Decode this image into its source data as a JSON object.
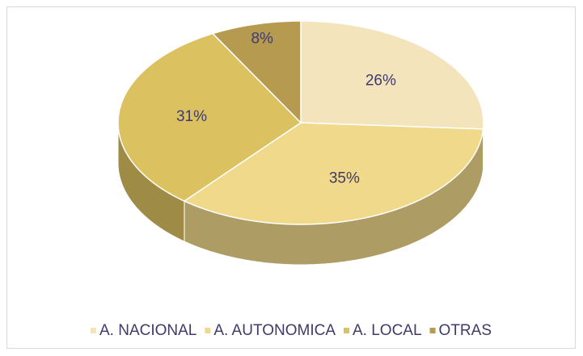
{
  "chart_data": {
    "type": "pie",
    "categories": [
      "A. NACIONAL",
      "A. AUTONOMICA",
      "A. LOCAL",
      "OTRAS"
    ],
    "values": [
      26,
      35,
      31,
      8
    ],
    "value_labels": [
      "26%",
      "35%",
      "31%",
      "8%"
    ],
    "colors": [
      "#f3e4bb",
      "#f0d98a",
      "#dcc160",
      "#b59a50"
    ],
    "legend": "bottom"
  }
}
